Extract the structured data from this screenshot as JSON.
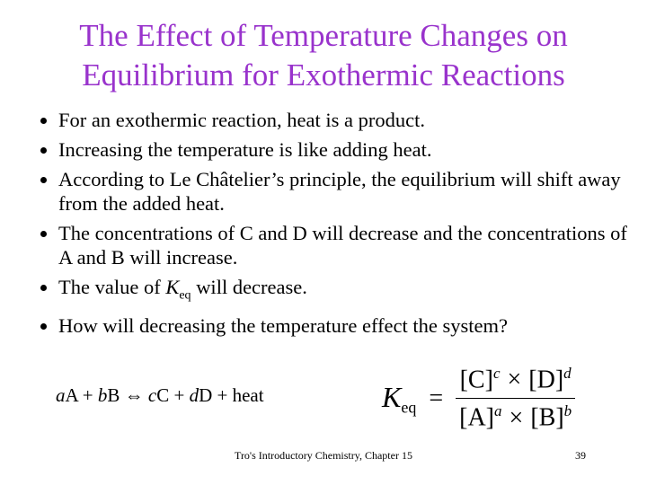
{
  "title": {
    "lines": [
      "The Effect of Temperature Changes on",
      "Equilibrium for Exothermic Reactions"
    ]
  },
  "bullets": [
    {
      "text": "For an exothermic reaction, heat is a product."
    },
    {
      "text": "Increasing the temperature is like adding heat."
    },
    {
      "text": "According to Le Châtelier’s principle, the equilibrium will shift away from the added heat."
    },
    {
      "text": "The concentrations of C and D will decrease and the concentrations of A and B will increase."
    },
    {
      "before": "The value of ",
      "symbol": "K",
      "subscript": "eq",
      "after": " will decrease."
    },
    {
      "text": "How will decreasing the temperature effect the system?"
    }
  ],
  "equation": {
    "tokens": [
      {
        "text": "a",
        "italic": true
      },
      {
        "text": "A + ",
        "italic": false
      },
      {
        "text": "b",
        "italic": true
      },
      {
        "text": "B ⇔ ",
        "italic": false
      },
      {
        "text": "c",
        "italic": true
      },
      {
        "text": "C + ",
        "italic": false
      },
      {
        "text": "d",
        "italic": true
      },
      {
        "text": "D + heat",
        "italic": false
      }
    ]
  },
  "formula": {
    "symbol": "K",
    "subscript": "eq",
    "equals": "=",
    "operator": "×",
    "numerator": [
      {
        "base": "[C]",
        "exp": "c"
      },
      {
        "base": "[D]",
        "exp": "d"
      }
    ],
    "denominator": [
      {
        "base": "[A]",
        "exp": "a"
      },
      {
        "base": "[B]",
        "exp": "b"
      }
    ]
  },
  "footer": {
    "text": "Tro's Introductory Chemistry, Chapter 15",
    "page": "39"
  }
}
